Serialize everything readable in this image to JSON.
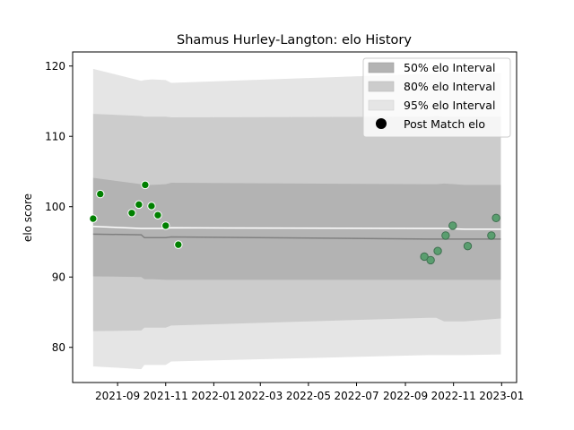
{
  "chart_data": {
    "type": "scatter",
    "title": "Shamus Hurley-Langton: elo History",
    "ylabel": "elo score",
    "xlabel": "",
    "xlim": [
      "2021-07-06",
      "2023-01-20"
    ],
    "ylim": [
      75,
      122
    ],
    "x_ticks": [
      "2021-09",
      "2021-11",
      "2022-01",
      "2022-03",
      "2022-05",
      "2022-07",
      "2022-09",
      "2022-11",
      "2023-01"
    ],
    "y_ticks": [
      80,
      90,
      100,
      110,
      120
    ],
    "grid": false,
    "legend_position": "top-right",
    "legend": {
      "band50": "50% elo Interval",
      "band80": "80% elo Interval",
      "band95": "95% elo Interval",
      "points": "Post Match elo"
    },
    "colors": {
      "band50": "#b3b3b3",
      "band80": "#cccccc",
      "band95": "#e5e5e5",
      "mean_line": "#ffffff",
      "median_line": "#808080",
      "points_2021": "#008000",
      "points_2022": "#5a9e6f"
    },
    "bands": {
      "x": [
        "2021-08-01",
        "2021-10-01",
        "2021-10-05",
        "2021-10-15",
        "2021-11-01",
        "2021-11-08",
        "2022-09-30",
        "2022-10-10",
        "2022-10-20",
        "2022-11-15",
        "2022-12-31"
      ],
      "upper95": [
        119.6,
        117.9,
        118.0,
        118.1,
        118.0,
        117.6,
        118.9,
        118.9,
        119.1,
        119.0,
        119.0
      ],
      "upper80": [
        113.2,
        112.9,
        112.8,
        112.8,
        112.8,
        112.7,
        112.8,
        112.9,
        112.8,
        112.8,
        112.8
      ],
      "upper50": [
        104.1,
        103.2,
        103.1,
        103.1,
        103.2,
        103.4,
        103.2,
        103.2,
        103.3,
        103.1,
        103.1
      ],
      "mean": [
        97.2,
        96.9,
        96.9,
        96.9,
        96.9,
        97.0,
        96.9,
        96.9,
        96.9,
        96.8,
        96.8
      ],
      "median": [
        96.1,
        96.0,
        95.6,
        95.6,
        95.6,
        95.7,
        95.4,
        95.4,
        95.4,
        95.4,
        95.4
      ],
      "lower50": [
        90.1,
        90.0,
        89.7,
        89.7,
        89.6,
        89.6,
        89.6,
        89.6,
        89.6,
        89.6,
        89.6
      ],
      "lower80": [
        82.3,
        82.4,
        82.8,
        82.8,
        82.8,
        83.1,
        84.2,
        84.2,
        83.7,
        83.7,
        84.1
      ],
      "lower95": [
        77.3,
        76.9,
        77.5,
        77.5,
        77.5,
        78.0,
        78.9,
        78.9,
        78.9,
        78.9,
        79.0
      ]
    },
    "series": [
      {
        "x": [
          "2021-08-01",
          "2021-08-10",
          "2021-09-19",
          "2021-09-28",
          "2021-10-06",
          "2021-10-14",
          "2021-10-22",
          "2021-11-01",
          "2021-11-17"
        ],
        "values": [
          98.3,
          101.8,
          99.1,
          100.3,
          103.1,
          100.1,
          98.8,
          97.3,
          94.6
        ],
        "color": "#008000"
      },
      {
        "x": [
          "2022-09-25",
          "2022-10-03",
          "2022-10-12",
          "2022-10-22",
          "2022-10-31",
          "2022-11-19",
          "2022-12-19",
          "2022-12-25"
        ],
        "values": [
          92.9,
          92.4,
          93.7,
          95.9,
          97.3,
          94.4,
          95.9,
          98.4
        ],
        "color": "#5a9e6f"
      }
    ]
  }
}
